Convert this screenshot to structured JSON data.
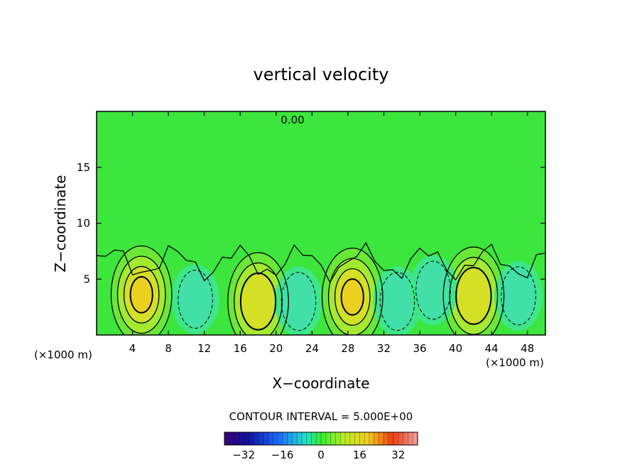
{
  "chart_data": {
    "type": "heatmap",
    "title": "vertical velocity",
    "xlabel": "X−coordinate",
    "ylabel": "Z−coordinate",
    "x_unit_left": "(×1000 m)",
    "x_unit_right": "(×1000 m)",
    "xlim": [
      0,
      50
    ],
    "ylim": [
      0,
      20
    ],
    "x_ticks": [
      4,
      8,
      12,
      16,
      20,
      24,
      28,
      32,
      36,
      40,
      44,
      48
    ],
    "y_ticks": [
      5,
      10,
      15
    ],
    "contour_interval_label": "CONTOUR INTERVAL = 5.000E+00",
    "zero_contour_label": "0.00",
    "colorbar": {
      "range": [
        -40,
        40
      ],
      "ticks": [
        -32,
        -16,
        0,
        16,
        32
      ],
      "tick_labels": [
        "−32",
        "−16",
        "0",
        "16",
        "32"
      ]
    },
    "updrafts": [
      {
        "x": 5,
        "z": 3.6,
        "peak": 15
      },
      {
        "x": 18,
        "z": 3,
        "peak": 8
      },
      {
        "x": 28.5,
        "z": 3.4,
        "peak": 15
      },
      {
        "x": 42,
        "z": 3.5,
        "peak": 8
      }
    ],
    "downdrafts": [
      {
        "x": 11,
        "z": 3.2,
        "peak": -6
      },
      {
        "x": 22.5,
        "z": 3,
        "peak": -6
      },
      {
        "x": 33.5,
        "z": 3,
        "peak": -6
      },
      {
        "x": 37.5,
        "z": 4,
        "peak": -5
      },
      {
        "x": 47,
        "z": 3.5,
        "peak": -6
      }
    ]
  }
}
